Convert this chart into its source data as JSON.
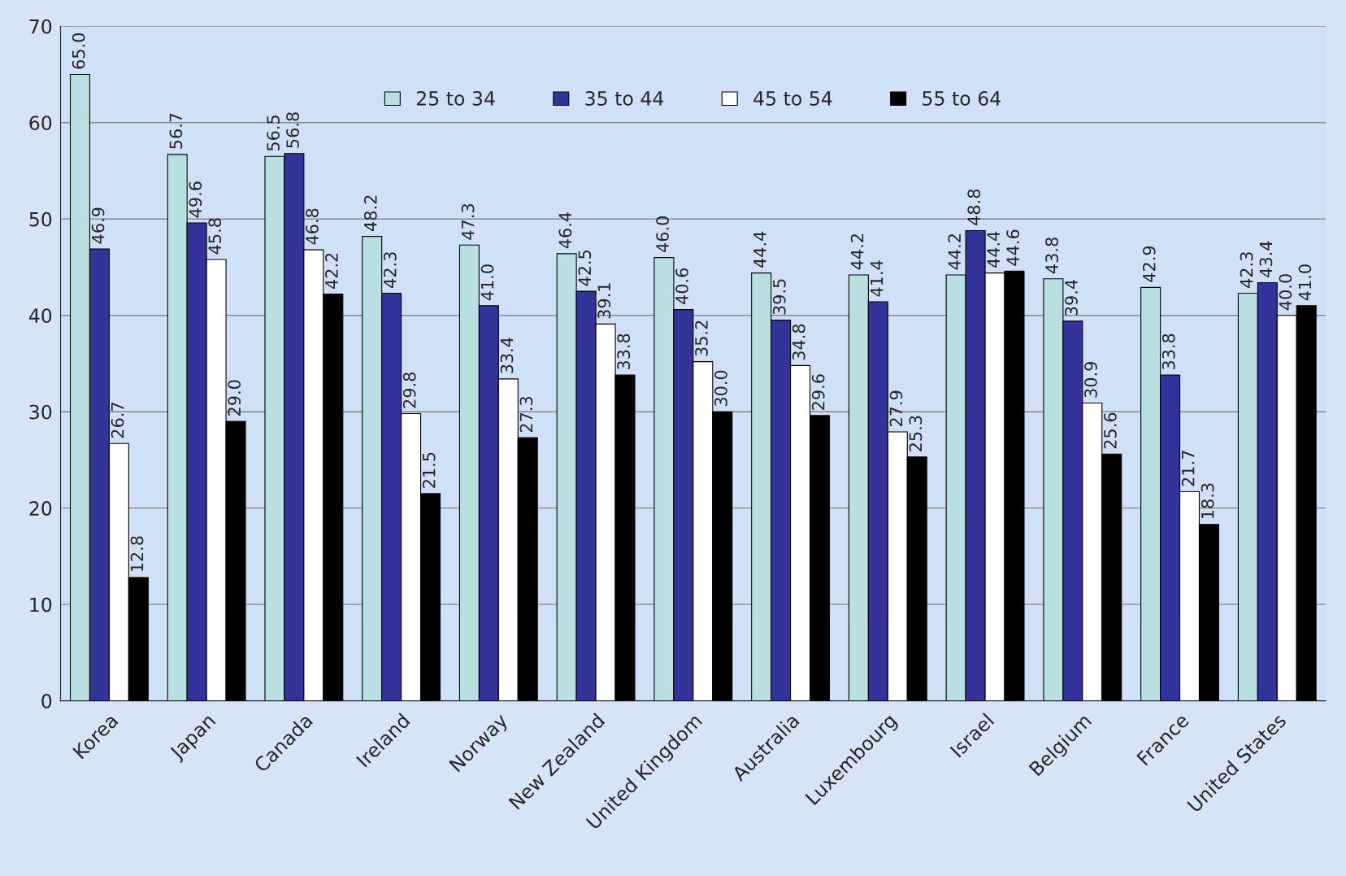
{
  "chart_data": {
    "type": "bar",
    "categories": [
      "Korea",
      "Japan",
      "Canada",
      "Ireland",
      "Norway",
      "New Zealand",
      "United Kingdom",
      "Australia",
      "Luxembourg",
      "Israel",
      "Belgium",
      "France",
      "United States"
    ],
    "series": [
      {
        "name": "25 to 34",
        "color": "#b8e0e0",
        "values": [
          65.0,
          56.7,
          56.5,
          48.2,
          47.3,
          46.4,
          46.0,
          44.4,
          44.2,
          44.2,
          43.8,
          42.9,
          42.3
        ],
        "value_labels": [
          "65.0",
          "56.7",
          "56.5",
          "48.2",
          "47.3",
          "46.4",
          "46.0",
          "44.4",
          "44.2",
          "44.2",
          "43.8",
          "42.9",
          "42.3"
        ]
      },
      {
        "name": "35 to 44",
        "color": "#333399",
        "values": [
          46.9,
          49.6,
          56.8,
          42.3,
          41.0,
          42.5,
          40.6,
          39.5,
          41.4,
          48.8,
          39.4,
          33.8,
          43.4
        ],
        "value_labels": [
          "46.9",
          "49.6",
          "56.8",
          "42.3",
          "41.0",
          "42.5",
          "40.6",
          "39.5",
          "41.4",
          "48.8",
          "39.4",
          "33.8",
          "43.4"
        ]
      },
      {
        "name": "45 to 54",
        "color": "#ffffff",
        "values": [
          26.7,
          45.8,
          46.8,
          29.8,
          33.4,
          39.1,
          35.2,
          34.8,
          27.9,
          44.4,
          30.9,
          21.7,
          40.0
        ],
        "value_labels": [
          "26.7",
          "45.8",
          "46.8",
          "29.8",
          "33.4",
          "39.1",
          "35.2",
          "34.8",
          "27.9",
          "44.4",
          "30.9",
          "21.7",
          "40.0"
        ]
      },
      {
        "name": "55 to 64",
        "color": "#000000",
        "values": [
          12.8,
          29.0,
          42.2,
          21.5,
          27.3,
          33.8,
          30.0,
          29.6,
          25.3,
          44.6,
          25.6,
          18.3,
          41.0
        ],
        "value_labels": [
          "12.8",
          "29.0",
          "42.2",
          "21.5",
          "27.3",
          "33.8",
          "30.0",
          "29.6",
          "25.3",
          "44.6",
          "25.6",
          "18.3",
          "41.0"
        ]
      }
    ],
    "ylim": [
      0,
      70
    ],
    "yticks": [
      0,
      10,
      20,
      30,
      40,
      50,
      60,
      70
    ],
    "grid": "y",
    "legend": "top"
  }
}
